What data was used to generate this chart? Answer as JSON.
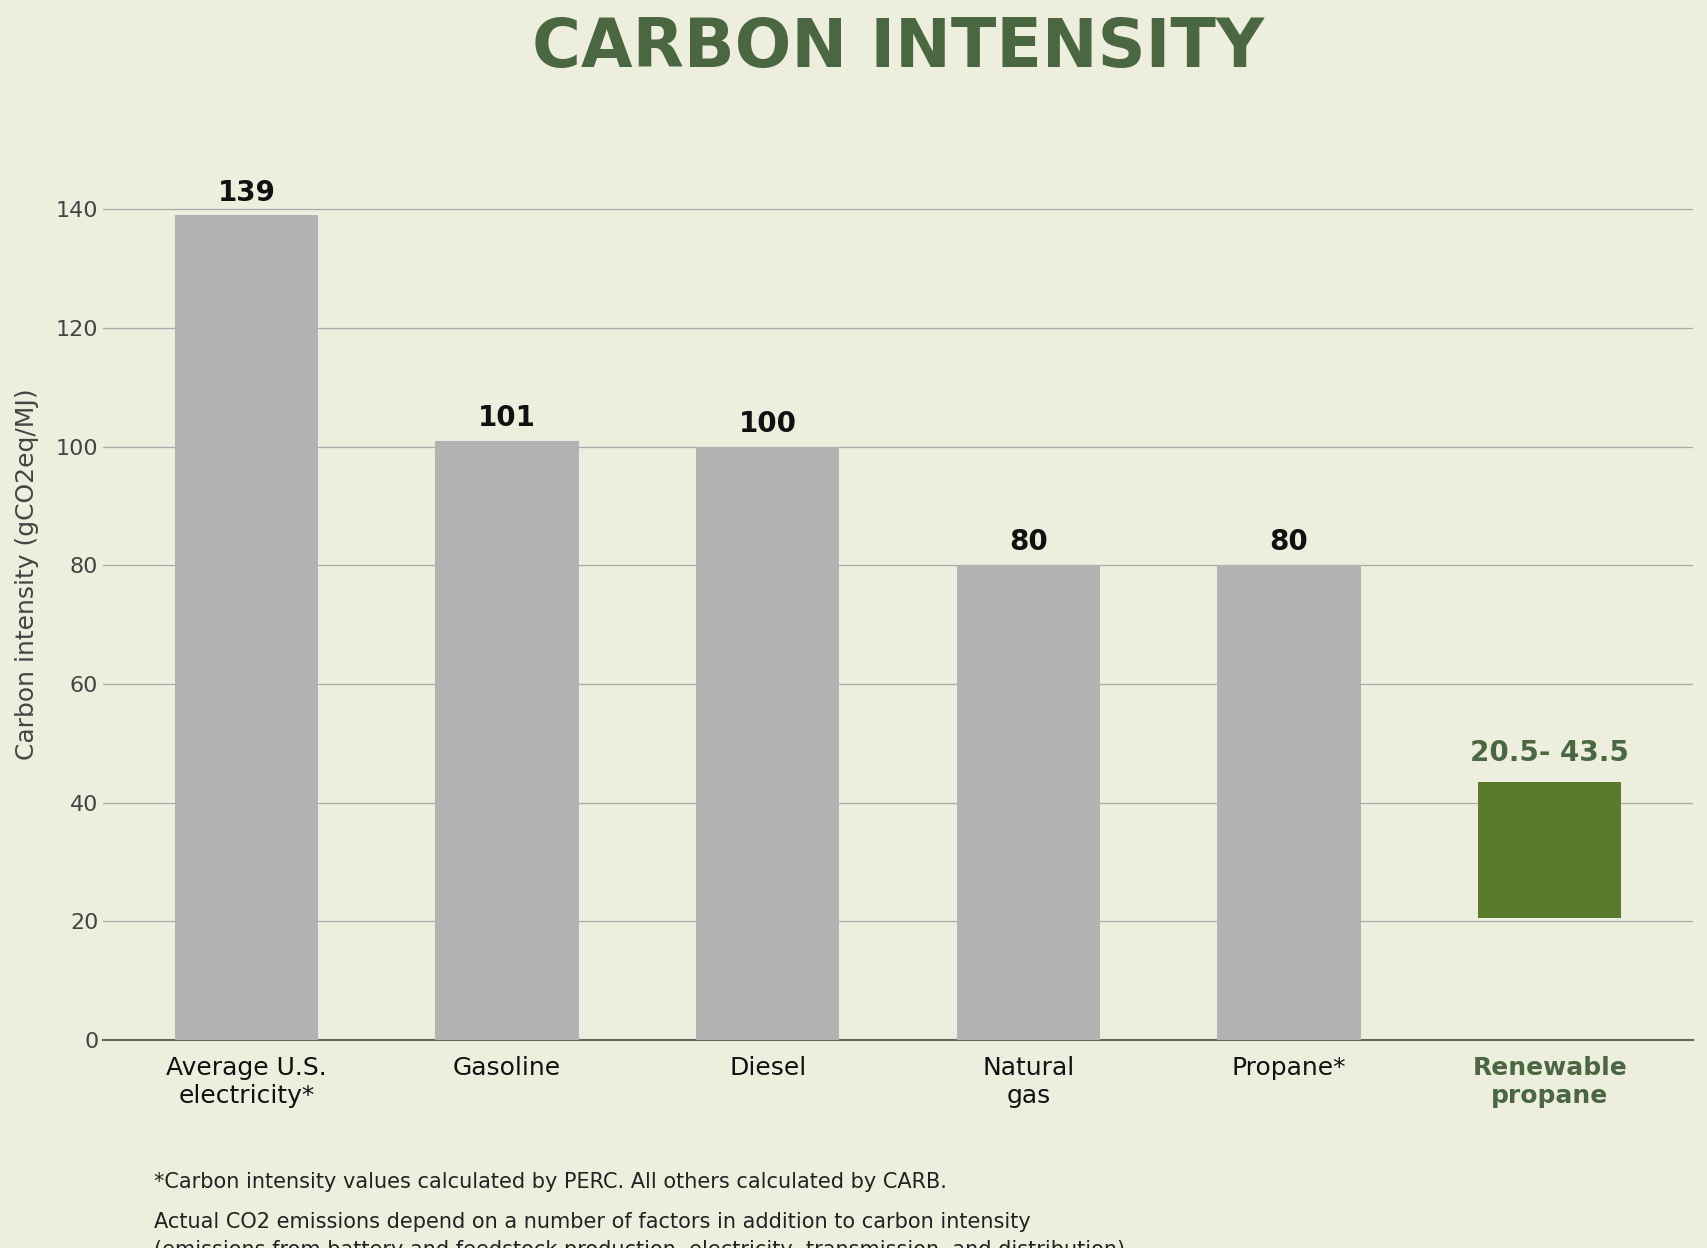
{
  "title": "CARBON INTENSITY",
  "title_color": "#4a6741",
  "title_fontsize": 48,
  "background_color": "#eeeede",
  "categories": [
    "Average U.S.\nelectricity*",
    "Gasoline",
    "Diesel",
    "Natural\ngas",
    "Propane*",
    "Renewable\npropane"
  ],
  "values": [
    139,
    101,
    100,
    80,
    80,
    43.5
  ],
  "bar_bottoms": [
    0,
    0,
    0,
    0,
    0,
    20.5
  ],
  "bar_colors": [
    "#b3b3b3",
    "#b3b3b3",
    "#b3b3b3",
    "#b3b3b3",
    "#b3b3b3",
    "#5a7a2e"
  ],
  "tick_label_colors": [
    "#111111",
    "#111111",
    "#111111",
    "#111111",
    "#111111",
    "#4a6741"
  ],
  "value_labels": [
    "139",
    "101",
    "100",
    "80",
    "80",
    "20.5- 43.5"
  ],
  "value_label_colors": [
    "#111111",
    "#111111",
    "#111111",
    "#111111",
    "#111111",
    "#4a6741"
  ],
  "ylabel": "Carbon intensity (gCO2eq/MJ)",
  "ylabel_fontsize": 18,
  "ylim": [
    0,
    157
  ],
  "yticks": [
    0,
    20,
    40,
    60,
    80,
    100,
    120,
    140
  ],
  "footnote1": "*Carbon intensity values calculated by PERC. All others calculated by CARB.",
  "footnote2": "Actual CO2 emissions depend on a number of factors in addition to carbon intensity\n(emissions from battery and feedstock production, electricity, transmission, and distribution).",
  "footnote_fontsize": 15,
  "grid_color": "#aaaaaa",
  "axis_color": "#666666",
  "bar_width": 0.55
}
